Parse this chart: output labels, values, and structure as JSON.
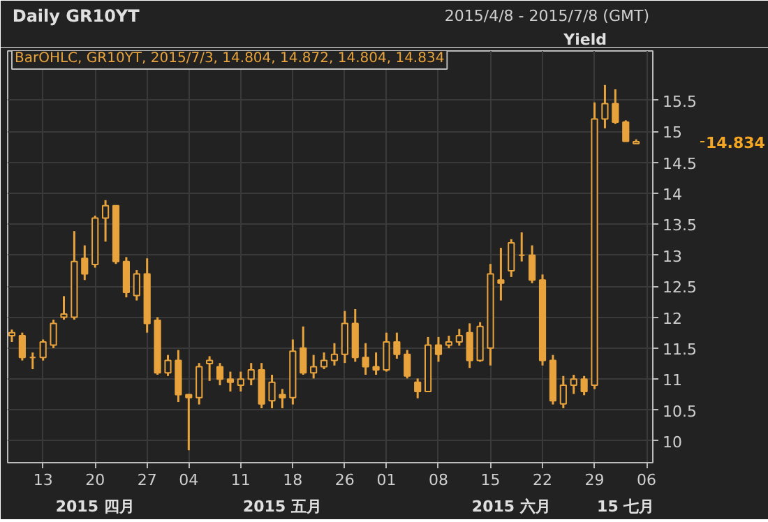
{
  "chart_data": {
    "type": "candlestick",
    "title": "Daily GR10YT",
    "subtitle": "2015/4/8 - 2015/7/8 (GMT)",
    "ylabel": "Yield",
    "categories": [
      null,
      null,
      null,
      "13",
      null,
      null,
      null,
      null,
      "20",
      null,
      null,
      null,
      null,
      "27",
      null,
      null,
      null,
      "04",
      null,
      null,
      null,
      null,
      "11",
      null,
      null,
      null,
      null,
      "18",
      null,
      null,
      null,
      null,
      "26",
      null,
      null,
      null,
      "01",
      null,
      null,
      null,
      null,
      "08",
      null,
      null,
      null,
      null,
      "15",
      null,
      null,
      null,
      null,
      "22",
      null,
      null,
      null,
      null,
      "29",
      null,
      null,
      null,
      null,
      "06"
    ],
    "ohlc": [
      [
        11.7,
        11.8,
        11.6,
        11.75
      ],
      [
        11.7,
        11.75,
        11.3,
        11.35
      ],
      [
        11.35,
        11.43,
        11.16,
        11.35
      ],
      [
        11.35,
        11.64,
        11.3,
        11.6
      ],
      [
        11.55,
        11.96,
        11.5,
        11.9
      ],
      [
        12.0,
        12.34,
        11.96,
        12.05
      ],
      [
        12.0,
        13.39,
        11.96,
        12.9
      ],
      [
        12.95,
        13.16,
        12.6,
        12.7
      ],
      [
        12.85,
        13.64,
        12.8,
        13.6
      ],
      [
        13.6,
        13.89,
        13.22,
        13.8
      ],
      [
        13.8,
        13.8,
        12.86,
        12.9
      ],
      [
        12.9,
        12.97,
        12.32,
        12.4
      ],
      [
        12.35,
        12.76,
        12.27,
        12.7
      ],
      [
        12.7,
        12.95,
        11.75,
        11.9
      ],
      [
        11.95,
        12.0,
        11.07,
        11.1
      ],
      [
        11.1,
        11.39,
        11.05,
        11.3
      ],
      [
        11.3,
        11.47,
        10.63,
        10.75
      ],
      [
        10.75,
        10.76,
        9.85,
        10.7
      ],
      [
        10.7,
        11.26,
        10.59,
        11.2
      ],
      [
        11.25,
        11.37,
        10.97,
        11.3
      ],
      [
        11.2,
        11.26,
        10.9,
        11.0
      ],
      [
        11.0,
        11.12,
        10.8,
        10.95
      ],
      [
        10.9,
        11.12,
        10.8,
        11.0
      ],
      [
        11.0,
        11.26,
        10.9,
        11.15
      ],
      [
        11.15,
        11.26,
        10.53,
        10.6
      ],
      [
        10.65,
        11.07,
        10.53,
        10.95
      ],
      [
        10.75,
        10.84,
        10.53,
        10.7
      ],
      [
        10.7,
        11.64,
        10.59,
        11.45
      ],
      [
        11.5,
        11.85,
        11.07,
        11.1
      ],
      [
        11.1,
        11.39,
        11.01,
        11.2
      ],
      [
        11.2,
        11.43,
        11.16,
        11.3
      ],
      [
        11.3,
        11.58,
        11.22,
        11.4
      ],
      [
        11.4,
        12.1,
        11.26,
        11.9
      ],
      [
        11.9,
        12.13,
        11.28,
        11.35
      ],
      [
        11.35,
        11.58,
        11.07,
        11.2
      ],
      [
        11.2,
        11.43,
        11.07,
        11.15
      ],
      [
        11.15,
        11.75,
        11.12,
        11.6
      ],
      [
        11.6,
        11.75,
        11.33,
        11.4
      ],
      [
        11.4,
        11.47,
        11.01,
        11.05
      ],
      [
        10.95,
        11.01,
        10.69,
        10.8
      ],
      [
        10.8,
        11.68,
        10.8,
        11.55
      ],
      [
        11.55,
        11.68,
        11.28,
        11.4
      ],
      [
        11.55,
        11.7,
        11.5,
        11.6
      ],
      [
        11.6,
        11.81,
        11.54,
        11.7
      ],
      [
        11.75,
        11.9,
        11.18,
        11.3
      ],
      [
        11.3,
        11.92,
        11.28,
        11.85
      ],
      [
        11.5,
        12.86,
        11.22,
        12.7
      ],
      [
        12.6,
        13.12,
        12.27,
        12.55
      ],
      [
        12.75,
        13.26,
        12.65,
        13.2
      ],
      [
        13.0,
        13.37,
        12.9,
        13.0
      ],
      [
        13.0,
        13.16,
        12.55,
        12.6
      ],
      [
        12.6,
        12.69,
        11.22,
        11.3
      ],
      [
        11.3,
        11.39,
        10.59,
        10.65
      ],
      [
        10.6,
        11.05,
        10.53,
        10.9
      ],
      [
        10.9,
        11.07,
        10.76,
        11.0
      ],
      [
        11.0,
        11.05,
        10.74,
        10.8
      ],
      [
        10.9,
        15.47,
        10.84,
        15.2
      ],
      [
        15.2,
        15.75,
        15.05,
        15.45
      ],
      [
        15.45,
        15.68,
        15.12,
        15.15
      ],
      [
        15.15,
        15.18,
        14.84,
        14.84
      ],
      [
        14.804,
        14.872,
        14.804,
        14.834
      ],
      null
    ],
    "color": "#e8a33c",
    "ylim": [
      9.65,
      16.3
    ],
    "yticks": [
      10,
      10.5,
      11,
      11.5,
      12,
      12.5,
      13,
      13.5,
      14,
      14.5,
      15,
      15.5
    ],
    "grid": true,
    "annotations": [
      "BarOHLC, GR10YT, 2015/7/3, 14.804, 14.872, 14.804, 14.834",
      "2015 四月",
      "2015 五月",
      "2015 六月",
      "15 七月",
      "14.834"
    ]
  }
}
